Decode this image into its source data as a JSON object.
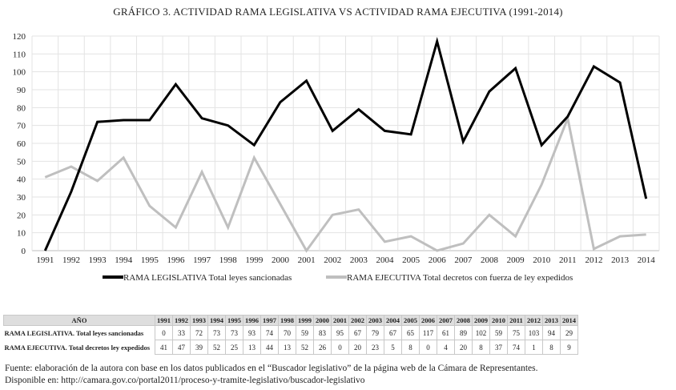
{
  "title": "GRÁFICO 3. ACTIVIDAD RAMA LEGISLATIVA VS ACTIVIDAD RAMA EJECUTIVA (1991-2014)",
  "chart_data": {
    "type": "line",
    "title": "GRÁFICO 3. ACTIVIDAD RAMA LEGISLATIVA VS ACTIVIDAD RAMA EJECUTIVA (1991-2014)",
    "xlabel": "",
    "ylabel": "",
    "x": [
      "1991",
      "1992",
      "1993",
      "1994",
      "1995",
      "1996",
      "1997",
      "1998",
      "1999",
      "2000",
      "2001",
      "2002",
      "2003",
      "2004",
      "2005",
      "2006",
      "2007",
      "2008",
      "2009",
      "2010",
      "2011",
      "2012",
      "2013",
      "2014"
    ],
    "yticks": [
      0,
      10,
      20,
      30,
      40,
      50,
      60,
      70,
      80,
      90,
      100,
      110,
      120
    ],
    "ylim": [
      0,
      120
    ],
    "grid": true,
    "legend_position": "bottom",
    "series": [
      {
        "name": "RAMA LEGISLATIVA Total leyes sancionadas",
        "color": "#000000",
        "values": [
          0,
          33,
          72,
          73,
          73,
          93,
          74,
          70,
          59,
          83,
          95,
          67,
          79,
          67,
          65,
          117,
          61,
          89,
          102,
          59,
          75,
          103,
          94,
          29
        ]
      },
      {
        "name": "RAMA EJECUTIVA Total decretos con fuerza de ley expedidos",
        "color": "#bfbfbf",
        "values": [
          41,
          47,
          39,
          52,
          25,
          13,
          44,
          13,
          52,
          26,
          0,
          20,
          23,
          5,
          8,
          0,
          4,
          20,
          8,
          37,
          74,
          1,
          8,
          9
        ]
      }
    ]
  },
  "table": {
    "header_label": "AÑO",
    "years": [
      "1991",
      "1992",
      "1993",
      "1994",
      "1995",
      "1996",
      "1997",
      "1998",
      "1999",
      "2000",
      "2001",
      "2002",
      "2003",
      "2004",
      "2005",
      "2006",
      "2007",
      "2008",
      "2009",
      "2010",
      "2011",
      "2012",
      "2013",
      "2014"
    ],
    "rows": [
      {
        "label": "RAMA LEGISLATIVA. Total leyes sancionadas",
        "values": [
          "0",
          "33",
          "72",
          "73",
          "73",
          "93",
          "74",
          "70",
          "59",
          "83",
          "95",
          "67",
          "79",
          "67",
          "65",
          "117",
          "61",
          "89",
          "102",
          "59",
          "75",
          "103",
          "94",
          "29"
        ]
      },
      {
        "label": "RAMA EJECUTIVA. Total decretos ley expedidos",
        "values": [
          "41",
          "47",
          "39",
          "52",
          "25",
          "13",
          "44",
          "13",
          "52",
          "26",
          "0",
          "20",
          "23",
          "5",
          "8",
          "0",
          "4",
          "20",
          "8",
          "37",
          "74",
          "1",
          "8",
          "9"
        ]
      }
    ]
  },
  "source": {
    "line1": "Fuente: elaboración de la autora con base en los datos publicados en el “Buscador legislativo” de la página web de la Cámara de Representantes.",
    "line2": "Disponible en: http://camara.gov.co/portal2011/proceso-y-tramite-legislativo/buscador-legislativo"
  }
}
